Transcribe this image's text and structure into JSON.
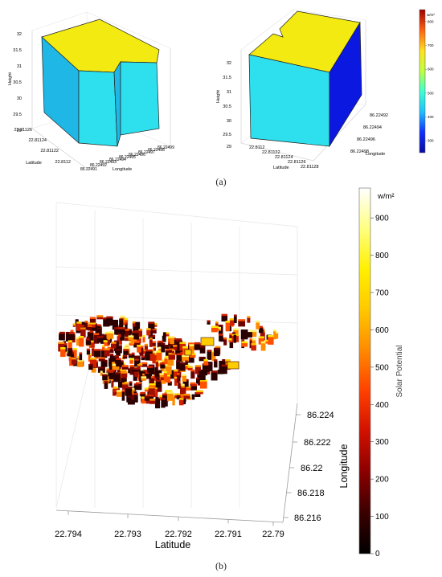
{
  "captions": {
    "a": "(a)",
    "b": "(b)"
  },
  "chart_data": [
    {
      "type": "bar3d",
      "panel": "a-left",
      "title": "",
      "xlabel": "Longitude",
      "ylabel": "Latitude",
      "zlabel": "Height",
      "zlim": [
        29,
        32
      ],
      "z_ticks": [
        "32",
        "31.5",
        "31",
        "30.5",
        "30",
        "29.5",
        "29"
      ],
      "lat_ticks": [
        "22.81126",
        "22.81124",
        "22.81122",
        "22.8112"
      ],
      "lon_ticks": [
        "86.22491",
        "86.22492",
        "86.22493",
        "86.22494",
        "86.22495",
        "86.22496",
        "86.22497",
        "86.22498",
        "86.22499"
      ],
      "building": {
        "roof_height": 32,
        "base_height": 29
      },
      "colors": {
        "roof": "#f2ea10",
        "wall_light": "#2ee0ee",
        "wall_mid": "#1fb8e6",
        "edge": "#000000"
      }
    },
    {
      "type": "bar3d",
      "panel": "a-right",
      "title": "",
      "xlabel": "Longitude",
      "ylabel": "Latitude",
      "zlabel": "Height",
      "zlim": [
        29,
        32
      ],
      "z_ticks": [
        "32",
        "31.5",
        "31",
        "30.5",
        "30",
        "29.5",
        "29"
      ],
      "lat_ticks": [
        "22.8112",
        "22.81122",
        "22.81124",
        "22.81126",
        "22.81128"
      ],
      "lon_ticks": [
        "86.22492",
        "86.22494",
        "86.22496",
        "86.22498"
      ],
      "building": {
        "roof_height": 32,
        "base_height": 29
      },
      "colors": {
        "roof": "#f2ea10",
        "wall_light": "#2ee0ee",
        "wall_dark": "#0a18e0",
        "edge": "#000000"
      }
    },
    {
      "type": "colorbar",
      "panel": "a-colorbar",
      "unit": "w/m²",
      "ticks": [
        "800",
        "700",
        "600",
        "500",
        "400",
        "300"
      ],
      "range": [
        250,
        850
      ],
      "colors": [
        "#0a0aa0",
        "#1030ff",
        "#20c0ff",
        "#40ffd0",
        "#c0ff40",
        "#ffe020",
        "#ff6010",
        "#a00000"
      ]
    },
    {
      "type": "bar3d",
      "panel": "b",
      "title": "",
      "xlabel": "Latitude",
      "ylabel": "Longitude",
      "lat_ticks": [
        "22.794",
        "22.793",
        "22.792",
        "22.791",
        "22.79"
      ],
      "lon_ticks": [
        "86.224",
        "86.222",
        "86.22",
        "86.218",
        "86.216"
      ],
      "colorbar": {
        "label": "Solar Potential",
        "unit": "w/m²",
        "ticks": [
          "900",
          "800",
          "700",
          "600",
          "500",
          "400",
          "300",
          "200",
          "100",
          "0"
        ],
        "range": [
          0,
          980
        ],
        "colors": [
          "#000000",
          "#3a0000",
          "#8a0000",
          "#d01000",
          "#ff4000",
          "#ff8a00",
          "#ffc800",
          "#fff000",
          "#ffff80",
          "#ffffff"
        ]
      }
    }
  ]
}
